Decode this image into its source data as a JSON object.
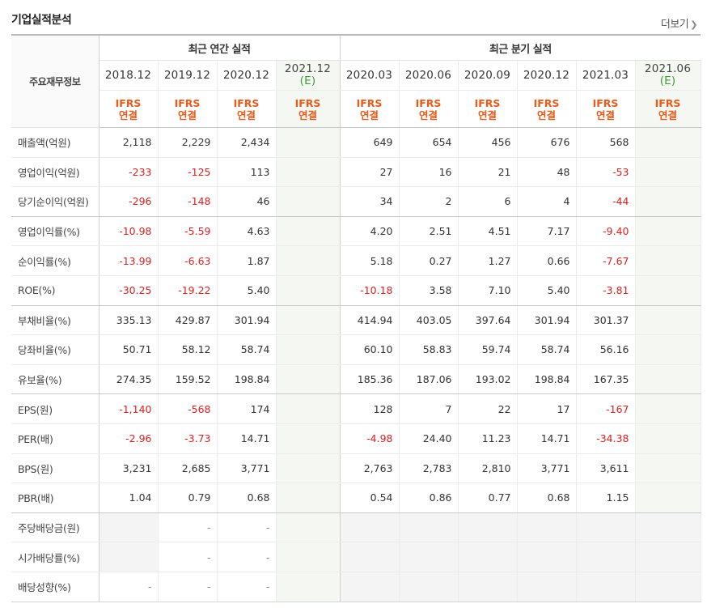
{
  "section_title": "기업실적분석",
  "more_link": "더보기",
  "header": {
    "row_label": "주요재무정보",
    "annual_group": "최근 연간 실적",
    "quarter_group": "최근 분기 실적",
    "annual_periods": [
      "2018.12",
      "2019.12",
      "2020.12",
      "2021.12"
    ],
    "quarter_periods": [
      "2020.03",
      "2020.06",
      "2020.09",
      "2020.12",
      "2021.03",
      "2021.06"
    ],
    "estimate_mark": "(E)",
    "ifrs_line1": "IFRS",
    "ifrs_line2": "연결"
  },
  "rows": [
    {
      "label": "매출액(억원)",
      "annual": [
        "2,118",
        "2,229",
        "2,434",
        ""
      ],
      "quarter": [
        "649",
        "654",
        "456",
        "676",
        "568",
        ""
      ]
    },
    {
      "label": "영업이익(억원)",
      "annual": [
        "-233",
        "-125",
        "113",
        ""
      ],
      "quarter": [
        "27",
        "16",
        "21",
        "48",
        "-53",
        ""
      ]
    },
    {
      "label": "당기순이익(억원)",
      "annual": [
        "-296",
        "-148",
        "46",
        ""
      ],
      "quarter": [
        "34",
        "2",
        "6",
        "4",
        "-44",
        ""
      ]
    },
    {
      "label": "영업이익률(%)",
      "annual": [
        "-10.98",
        "-5.59",
        "4.63",
        ""
      ],
      "quarter": [
        "4.20",
        "2.51",
        "4.51",
        "7.17",
        "-9.40",
        ""
      ]
    },
    {
      "label": "순이익률(%)",
      "annual": [
        "-13.99",
        "-6.63",
        "1.87",
        ""
      ],
      "quarter": [
        "5.18",
        "0.27",
        "1.27",
        "0.66",
        "-7.67",
        ""
      ]
    },
    {
      "label": "ROE(%)",
      "annual": [
        "-30.25",
        "-19.22",
        "5.40",
        ""
      ],
      "quarter": [
        "-10.18",
        "3.58",
        "7.10",
        "5.40",
        "-3.81",
        ""
      ]
    },
    {
      "label": "부채비율(%)",
      "annual": [
        "335.13",
        "429.87",
        "301.94",
        ""
      ],
      "quarter": [
        "414.94",
        "403.05",
        "397.64",
        "301.94",
        "301.37",
        ""
      ]
    },
    {
      "label": "당좌비율(%)",
      "annual": [
        "50.71",
        "58.12",
        "58.74",
        ""
      ],
      "quarter": [
        "60.10",
        "58.83",
        "59.74",
        "58.74",
        "56.16",
        ""
      ]
    },
    {
      "label": "유보율(%)",
      "annual": [
        "274.35",
        "159.52",
        "198.84",
        ""
      ],
      "quarter": [
        "185.36",
        "187.06",
        "193.02",
        "198.84",
        "167.35",
        ""
      ]
    },
    {
      "label": "EPS(원)",
      "annual": [
        "-1,140",
        "-568",
        "174",
        ""
      ],
      "quarter": [
        "128",
        "7",
        "22",
        "17",
        "-167",
        ""
      ]
    },
    {
      "label": "PER(배)",
      "annual": [
        "-2.96",
        "-3.73",
        "14.71",
        ""
      ],
      "quarter": [
        "-4.98",
        "24.40",
        "11.23",
        "14.71",
        "-34.38",
        ""
      ]
    },
    {
      "label": "BPS(원)",
      "annual": [
        "3,231",
        "2,685",
        "3,771",
        ""
      ],
      "quarter": [
        "2,763",
        "2,783",
        "2,810",
        "3,771",
        "3,611",
        ""
      ]
    },
    {
      "label": "PBR(배)",
      "annual": [
        "1.04",
        "0.79",
        "0.68",
        ""
      ],
      "quarter": [
        "0.54",
        "0.86",
        "0.77",
        "0.68",
        "1.15",
        ""
      ]
    },
    {
      "label": "주당배당금(원)",
      "annual": [
        "",
        "-",
        "-",
        ""
      ],
      "quarter": [
        "",
        "",
        "",
        "",
        "",
        ""
      ]
    },
    {
      "label": "시가배당률(%)",
      "annual": [
        "",
        "-",
        "-",
        ""
      ],
      "quarter": [
        "",
        "",
        "",
        "",
        "",
        ""
      ]
    },
    {
      "label": "배당성향(%)",
      "annual": [
        "-",
        "-",
        "-",
        ""
      ],
      "quarter": [
        "",
        "",
        "",
        "",
        "",
        ""
      ]
    }
  ],
  "colors": {
    "negative": "#e02020",
    "ifrs": "#ea5a19",
    "estimate_bg": "#f5f8f2",
    "estimate_text": "#3e9c35"
  }
}
